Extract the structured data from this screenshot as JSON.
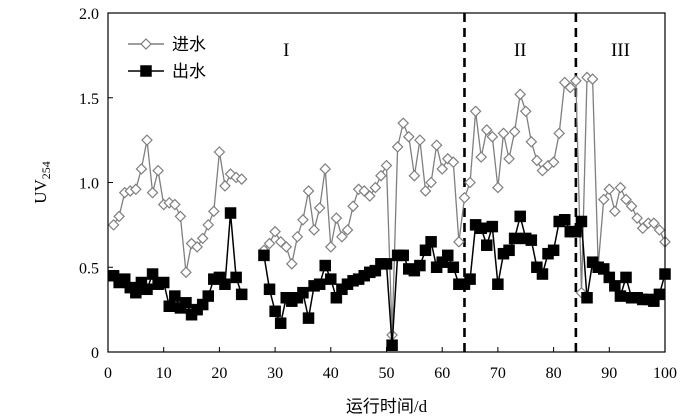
{
  "chart_data": {
    "type": "line",
    "xlabel": "运行时间/d",
    "ylabel": "UV",
    "ylabel_sub": "254",
    "xlim": [
      0,
      100
    ],
    "ylim": [
      0,
      2.0
    ],
    "xticks": [
      0,
      10,
      20,
      30,
      40,
      50,
      60,
      70,
      80,
      90,
      100
    ],
    "yticks": [
      0,
      0.5,
      1.0,
      1.5,
      2.0
    ],
    "xtick_labels": [
      "0",
      "10",
      "20",
      "30",
      "40",
      "50",
      "60",
      "70",
      "80",
      "90",
      "100"
    ],
    "ytick_labels": [
      "0",
      "0.5",
      "1.0",
      "1.5",
      "2.0"
    ],
    "grid": false,
    "legend_position": "top-left",
    "phase_boundaries": [
      64,
      84
    ],
    "phases": [
      {
        "label": "I",
        "x": 32
      },
      {
        "label": "II",
        "x": 74
      },
      {
        "label": "III",
        "x": 92
      }
    ],
    "series": [
      {
        "name": "进水",
        "color": "#7f7f7f",
        "marker": "open-diamond",
        "segments": [
          [
            [
              1,
              0.75
            ],
            [
              2,
              0.8
            ],
            [
              3,
              0.94
            ],
            [
              4,
              0.95
            ],
            [
              5,
              0.96
            ],
            [
              6,
              1.08
            ],
            [
              7,
              1.25
            ],
            [
              8,
              0.94
            ],
            [
              9,
              1.07
            ],
            [
              10,
              0.87
            ],
            [
              11,
              0.88
            ],
            [
              12,
              0.87
            ],
            [
              13,
              0.8
            ],
            [
              14,
              0.47
            ],
            [
              15,
              0.64
            ],
            [
              16,
              0.62
            ],
            [
              17,
              0.67
            ],
            [
              18,
              0.75
            ],
            [
              19,
              0.83
            ],
            [
              20,
              1.18
            ],
            [
              21,
              0.98
            ],
            [
              22,
              1.05
            ],
            [
              23,
              1.03
            ],
            [
              24,
              1.02
            ]
          ],
          [
            [
              28,
              0.6
            ],
            [
              29,
              0.64
            ],
            [
              30,
              0.71
            ],
            [
              31,
              0.65
            ],
            [
              32,
              0.62
            ],
            [
              33,
              0.52
            ],
            [
              34,
              0.68
            ],
            [
              35,
              0.78
            ],
            [
              36,
              0.95
            ],
            [
              37,
              0.72
            ],
            [
              38,
              0.85
            ],
            [
              39,
              1.08
            ],
            [
              40,
              0.62
            ],
            [
              41,
              0.79
            ],
            [
              42,
              0.68
            ],
            [
              43,
              0.72
            ],
            [
              44,
              0.86
            ],
            [
              45,
              0.96
            ],
            [
              46,
              0.95
            ],
            [
              47,
              0.92
            ],
            [
              48,
              0.97
            ],
            [
              49,
              1.04
            ],
            [
              50,
              1.1
            ],
            [
              51,
              0.1
            ],
            [
              52,
              1.21
            ],
            [
              53,
              1.35
            ],
            [
              54,
              1.27
            ],
            [
              55,
              1.04
            ],
            [
              56,
              1.25
            ],
            [
              57,
              0.95
            ],
            [
              58,
              1.0
            ],
            [
              59,
              1.22
            ],
            [
              60,
              1.08
            ],
            [
              61,
              1.14
            ],
            [
              62,
              1.12
            ],
            [
              63,
              0.65
            ],
            [
              64,
              0.91
            ],
            [
              65,
              1.0
            ],
            [
              66,
              1.42
            ],
            [
              67,
              1.15
            ],
            [
              68,
              1.31
            ],
            [
              69,
              1.27
            ],
            [
              70,
              0.97
            ],
            [
              71,
              1.29
            ],
            [
              72,
              1.14
            ],
            [
              73,
              1.3
            ],
            [
              74,
              1.52
            ],
            [
              75,
              1.42
            ],
            [
              76,
              1.24
            ],
            [
              77,
              1.13
            ],
            [
              78,
              1.07
            ],
            [
              79,
              1.1
            ],
            [
              80,
              1.12
            ],
            [
              81,
              1.29
            ],
            [
              82,
              1.59
            ],
            [
              83,
              1.56
            ],
            [
              84,
              1.6
            ],
            [
              85,
              0.35
            ],
            [
              86,
              1.62
            ],
            [
              87,
              1.61
            ],
            [
              88,
              0.51
            ],
            [
              89,
              0.9
            ],
            [
              90,
              0.96
            ],
            [
              91,
              0.83
            ],
            [
              92,
              0.97
            ],
            [
              93,
              0.9
            ],
            [
              94,
              0.86
            ],
            [
              95,
              0.79
            ],
            [
              96,
              0.73
            ],
            [
              97,
              0.76
            ],
            [
              98,
              0.76
            ],
            [
              99,
              0.72
            ],
            [
              100,
              0.65
            ]
          ]
        ]
      },
      {
        "name": "出水",
        "color": "#000000",
        "marker": "filled-square",
        "segments": [
          [
            [
              1,
              0.45
            ],
            [
              2,
              0.41
            ],
            [
              3,
              0.43
            ],
            [
              4,
              0.38
            ],
            [
              5,
              0.35
            ],
            [
              6,
              0.41
            ],
            [
              7,
              0.37
            ],
            [
              8,
              0.46
            ],
            [
              9,
              0.4
            ],
            [
              10,
              0.41
            ],
            [
              11,
              0.27
            ],
            [
              12,
              0.33
            ],
            [
              13,
              0.26
            ],
            [
              14,
              0.29
            ],
            [
              15,
              0.22
            ],
            [
              16,
              0.25
            ],
            [
              17,
              0.28
            ],
            [
              18,
              0.33
            ],
            [
              19,
              0.43
            ],
            [
              20,
              0.44
            ],
            [
              21,
              0.4
            ],
            [
              22,
              0.82
            ],
            [
              23,
              0.44
            ],
            [
              24,
              0.34
            ]
          ],
          [
            [
              28,
              0.57
            ],
            [
              29,
              0.37
            ],
            [
              30,
              0.24
            ],
            [
              31,
              0.17
            ],
            [
              32,
              0.32
            ],
            [
              33,
              0.3
            ],
            [
              34,
              0.32
            ],
            [
              35,
              0.35
            ],
            [
              36,
              0.2
            ],
            [
              37,
              0.39
            ],
            [
              38,
              0.4
            ],
            [
              39,
              0.51
            ],
            [
              40,
              0.43
            ],
            [
              41,
              0.32
            ],
            [
              42,
              0.37
            ],
            [
              43,
              0.4
            ],
            [
              44,
              0.42
            ],
            [
              45,
              0.43
            ],
            [
              46,
              0.45
            ],
            [
              47,
              0.47
            ],
            [
              48,
              0.48
            ],
            [
              49,
              0.52
            ],
            [
              50,
              0.52
            ],
            [
              51,
              0.04
            ],
            [
              52,
              0.57
            ],
            [
              53,
              0.57
            ],
            [
              54,
              0.49
            ],
            [
              55,
              0.48
            ],
            [
              56,
              0.51
            ],
            [
              57,
              0.6
            ],
            [
              58,
              0.65
            ],
            [
              59,
              0.5
            ],
            [
              60,
              0.53
            ],
            [
              61,
              0.57
            ],
            [
              62,
              0.5
            ],
            [
              63,
              0.4
            ],
            [
              64,
              0.4
            ],
            [
              65,
              0.43
            ],
            [
              66,
              0.75
            ],
            [
              67,
              0.73
            ],
            [
              68,
              0.63
            ],
            [
              69,
              0.74
            ],
            [
              70,
              0.4
            ],
            [
              71,
              0.58
            ],
            [
              72,
              0.6
            ],
            [
              73,
              0.67
            ],
            [
              74,
              0.8
            ],
            [
              75,
              0.67
            ],
            [
              76,
              0.66
            ],
            [
              77,
              0.5
            ],
            [
              78,
              0.46
            ],
            [
              79,
              0.58
            ],
            [
              80,
              0.6
            ],
            [
              81,
              0.77
            ],
            [
              82,
              0.78
            ],
            [
              83,
              0.71
            ],
            [
              84,
              0.71
            ],
            [
              85,
              0.77
            ],
            [
              86,
              0.32
            ],
            [
              87,
              0.53
            ],
            [
              88,
              0.5
            ],
            [
              89,
              0.49
            ],
            [
              90,
              0.44
            ],
            [
              91,
              0.39
            ],
            [
              92,
              0.33
            ],
            [
              93,
              0.44
            ],
            [
              94,
              0.32
            ],
            [
              95,
              0.32
            ],
            [
              96,
              0.31
            ],
            [
              97,
              0.31
            ],
            [
              98,
              0.3
            ],
            [
              99,
              0.34
            ],
            [
              100,
              0.46
            ]
          ]
        ]
      }
    ]
  }
}
